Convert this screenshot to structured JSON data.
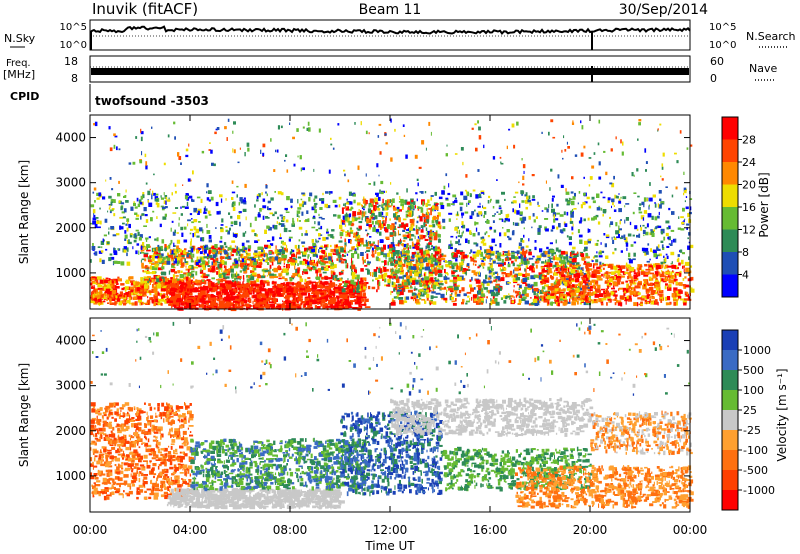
{
  "header": {
    "station": "Inuvik (fitACF)",
    "beam": "Beam 11",
    "date": "30/Sep/2014"
  },
  "sky_panel": {
    "left_label": "N.Sky",
    "right_label": "N.Search",
    "left_ticks": [
      "10^5",
      "10^0"
    ],
    "right_ticks": [
      "10^5",
      "10^0"
    ]
  },
  "freq_panel": {
    "left_label_1": "Freq.",
    "left_label_2": "[MHz]",
    "right_label": "Nave",
    "left_ticks": [
      "18",
      "8"
    ],
    "right_ticks": [
      "60",
      "0"
    ]
  },
  "cpid_panel": {
    "label": "CPID",
    "program": "twofsound -3503"
  },
  "chart_data": [
    {
      "type": "heatmap",
      "name": "power",
      "ylabel": "Slant Range [km]",
      "y_ticks": [
        "1000",
        "2000",
        "3000",
        "4000"
      ],
      "y_range": [
        200,
        4500
      ],
      "colorbar_label": "Power [dB]",
      "colorbar_ticks": [
        "4",
        "8",
        "12",
        "16",
        "20",
        "24",
        "28"
      ],
      "colorbar_colors": [
        "#0000ff",
        "#1f4fb5",
        "#2e8b57",
        "#66bb33",
        "#eedd00",
        "#ff8800",
        "#ff4400",
        "#ff0000"
      ]
    },
    {
      "type": "heatmap",
      "name": "velocity",
      "ylabel": "Slant Range [km]",
      "y_ticks": [
        "1000",
        "2000",
        "3000",
        "4000"
      ],
      "y_range": [
        200,
        4500
      ],
      "colorbar_label": "Velocity [m s⁻¹]",
      "colorbar_ticks": [
        "1000",
        "500",
        "100",
        "25",
        "-25",
        "-100",
        "-500",
        "-1000"
      ],
      "colorbar_colors": [
        "#1a3fb5",
        "#3a6bc4",
        "#2e8b57",
        "#66bb33",
        "#c8c8c8",
        "#ffa030",
        "#ff7010",
        "#ff4000",
        "#ff0000"
      ]
    }
  ],
  "x_axis": {
    "ticks": [
      "00:00",
      "04:00",
      "08:00",
      "12:00",
      "16:00",
      "20:00",
      "00:00"
    ],
    "label": "Time UT"
  }
}
